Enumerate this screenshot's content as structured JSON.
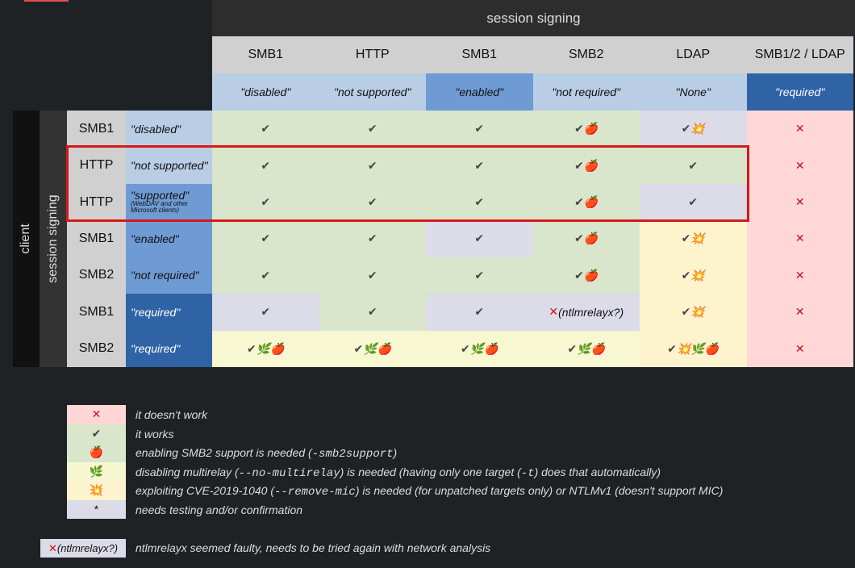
{
  "header": {
    "title": "session signing",
    "columns": [
      {
        "protocol": "SMB1",
        "setting": "\"disabled\"",
        "color": "#b9cde5",
        "text_color": "#111"
      },
      {
        "protocol": "HTTP",
        "setting": "\"not supported\"",
        "color": "#b9cde5",
        "text_color": "#111"
      },
      {
        "protocol": "SMB1",
        "setting": "\"enabled\"",
        "color": "#6f9bd4",
        "text_color": "#111"
      },
      {
        "protocol": "SMB2",
        "setting": "\"not required\"",
        "color": "#b9cde5",
        "text_color": "#111"
      },
      {
        "protocol": "LDAP",
        "setting": "\"None\"",
        "color": "#b9cde5",
        "text_color": "#111"
      },
      {
        "protocol": "SMB1/2 / LDAP",
        "setting": "\"required\"",
        "color": "#2f63a5",
        "text_color": "#fff"
      }
    ]
  },
  "side": {
    "title": "client",
    "subtitle": "session signing"
  },
  "rows": [
    {
      "protocol": "SMB1",
      "setting": "\"disabled\"",
      "color": "#b9cde5",
      "text_color": "#111",
      "cells": [
        {
          "text": "✔",
          "color": "#d9e6cc"
        },
        {
          "text": "✔",
          "color": "#d9e6cc"
        },
        {
          "text": "✔",
          "color": "#d9e6cc"
        },
        {
          "text": "✔🍎",
          "color": "#d9e6cc"
        },
        {
          "text": "✔💥",
          "color": "#dcdbe8"
        },
        {
          "text": "✕",
          "color": "#ffd7d7"
        }
      ]
    },
    {
      "protocol": "HTTP",
      "setting": "\"not supported\"",
      "color": "#b9cde5",
      "text_color": "#111",
      "cells": [
        {
          "text": "✔",
          "color": "#d9e6cc"
        },
        {
          "text": "✔",
          "color": "#d9e6cc"
        },
        {
          "text": "✔",
          "color": "#d9e6cc"
        },
        {
          "text": "✔🍎",
          "color": "#d9e6cc"
        },
        {
          "text": "✔",
          "color": "#d9e6cc"
        },
        {
          "text": "✕",
          "color": "#ffd7d7"
        }
      ]
    },
    {
      "protocol": "HTTP",
      "setting": "\"supported\"",
      "note": "(WebDAV and other Microsoft clients)",
      "color": "#6f9bd4",
      "text_color": "#111",
      "cells": [
        {
          "text": "✔",
          "color": "#d9e6cc"
        },
        {
          "text": "✔",
          "color": "#d9e6cc"
        },
        {
          "text": "✔",
          "color": "#d9e6cc"
        },
        {
          "text": "✔🍎",
          "color": "#d9e6cc"
        },
        {
          "text": "✔",
          "color": "#dcdbe8"
        },
        {
          "text": "✕",
          "color": "#ffd7d7"
        }
      ]
    },
    {
      "protocol": "SMB1",
      "setting": "\"enabled\"",
      "color": "#6f9bd4",
      "text_color": "#111",
      "cells": [
        {
          "text": "✔",
          "color": "#d9e6cc"
        },
        {
          "text": "✔",
          "color": "#d9e6cc"
        },
        {
          "text": "✔",
          "color": "#dcdbe8"
        },
        {
          "text": "✔🍎",
          "color": "#d9e6cc"
        },
        {
          "text": "✔💥",
          "color": "#fdf3cc"
        },
        {
          "text": "✕",
          "color": "#ffd7d7"
        }
      ]
    },
    {
      "protocol": "SMB2",
      "setting": "\"not required\"",
      "color": "#6f9bd4",
      "text_color": "#111",
      "cells": [
        {
          "text": "✔",
          "color": "#d9e6cc"
        },
        {
          "text": "✔",
          "color": "#d9e6cc"
        },
        {
          "text": "✔",
          "color": "#d9e6cc"
        },
        {
          "text": "✔🍎",
          "color": "#d9e6cc"
        },
        {
          "text": "✔💥",
          "color": "#fdf3cc"
        },
        {
          "text": "✕",
          "color": "#ffd7d7"
        }
      ]
    },
    {
      "protocol": "SMB1",
      "setting": "\"required\"",
      "color": "#2f63a5",
      "text_color": "#fff",
      "cells": [
        {
          "text": "✔",
          "color": "#dcdbe8"
        },
        {
          "text": "✔",
          "color": "#d9e6cc"
        },
        {
          "text": "✔",
          "color": "#dcdbe8"
        },
        {
          "text": "✕(ntlmrelayx?)",
          "color": "#dcdbe8"
        },
        {
          "text": "✔💥",
          "color": "#fdf3cc"
        },
        {
          "text": "✕",
          "color": "#ffd7d7"
        }
      ]
    },
    {
      "protocol": "SMB2",
      "setting": "\"required\"",
      "color": "#2f63a5",
      "text_color": "#fff",
      "cells": [
        {
          "text": "✔🌿🍎",
          "color": "#f7f7d2"
        },
        {
          "text": "✔🌿🍎",
          "color": "#f7f7d2"
        },
        {
          "text": "✔🌿🍎",
          "color": "#f7f7d2"
        },
        {
          "text": "✔🌿🍎",
          "color": "#f7f7d2"
        },
        {
          "text": "✔💥🌿🍎",
          "color": "#fdf3cc"
        },
        {
          "text": "✕",
          "color": "#ffd7d7"
        }
      ]
    }
  ],
  "legend": [
    {
      "symbol": "✕",
      "color": "#ffd6d6",
      "parts": [
        "it doesn't work"
      ]
    },
    {
      "symbol": "✔",
      "color": "#d9e6cc",
      "parts": [
        "it works"
      ]
    },
    {
      "symbol": "🍎",
      "color": "#d9e6cc",
      "parts": [
        "enabling SMB2 support is needed (",
        "-smb2support",
        ")"
      ]
    },
    {
      "symbol": "🌿",
      "color": "#f6f7d0",
      "parts": [
        "disabling multirelay (",
        "--no-multirelay",
        ") is needed (having only one target (",
        "-t",
        ") does that automatically)"
      ]
    },
    {
      "symbol": "💥",
      "color": "#fdf3cc",
      "parts": [
        "exploiting CVE-2019-1040 (",
        "--remove-mic",
        ") is needed (for unpatched targets only) or NTLMv1 (doesn't support MIC)"
      ]
    },
    {
      "symbol": "*",
      "color": "#dcdbe8",
      "parts": [
        "needs testing and/or confirmation"
      ]
    }
  ],
  "note": {
    "symbol": "✕(ntlmrelayx?)",
    "text": "ntlmrelayx seemed faulty, needs to be tried again with network analysis"
  }
}
